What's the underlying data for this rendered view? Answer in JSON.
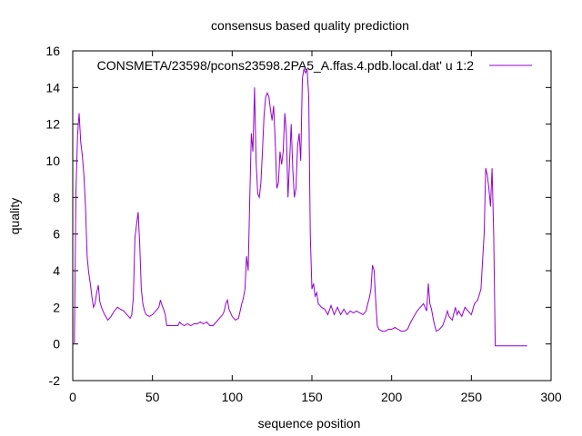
{
  "chart_data": {
    "type": "line",
    "title": "consensus based quality prediction",
    "xlabel": "sequence position",
    "ylabel": "quality",
    "xlim": [
      0,
      300
    ],
    "ylim": [
      -2,
      16
    ],
    "x_ticks": [
      0,
      50,
      100,
      150,
      200,
      250,
      300
    ],
    "y_ticks": [
      -2,
      0,
      2,
      4,
      6,
      8,
      10,
      12,
      14,
      16
    ],
    "grid": false,
    "legend_position": "top-right",
    "series": [
      {
        "name": "CONSMETA/23598/pcons23598.2PA5_A.ffas.4.pdb.local.dat' u 1:2",
        "color": "#9400d3",
        "points": [
          [
            1,
            0.0
          ],
          [
            2,
            8.3
          ],
          [
            3,
            11.4
          ],
          [
            4,
            12.6
          ],
          [
            5,
            11.0
          ],
          [
            6,
            10.3
          ],
          [
            7,
            9.2
          ],
          [
            8,
            7.5
          ],
          [
            9,
            4.8
          ],
          [
            10,
            3.9
          ],
          [
            11,
            3.3
          ],
          [
            12,
            2.6
          ],
          [
            13,
            2.0
          ],
          [
            14,
            2.2
          ],
          [
            15,
            2.8
          ],
          [
            16,
            3.2
          ],
          [
            17,
            2.3
          ],
          [
            18,
            2.0
          ],
          [
            19,
            1.8
          ],
          [
            20,
            1.6
          ],
          [
            22,
            1.3
          ],
          [
            24,
            1.5
          ],
          [
            26,
            1.8
          ],
          [
            28,
            2.0
          ],
          [
            30,
            1.9
          ],
          [
            32,
            1.8
          ],
          [
            34,
            1.6
          ],
          [
            35,
            1.5
          ],
          [
            36,
            1.4
          ],
          [
            37,
            1.6
          ],
          [
            38,
            2.5
          ],
          [
            39,
            5.8
          ],
          [
            40,
            6.5
          ],
          [
            41,
            7.2
          ],
          [
            42,
            5.5
          ],
          [
            43,
            3.0
          ],
          [
            44,
            2.2
          ],
          [
            45,
            1.8
          ],
          [
            46,
            1.6
          ],
          [
            48,
            1.5
          ],
          [
            50,
            1.6
          ],
          [
            52,
            1.8
          ],
          [
            54,
            2.0
          ],
          [
            55,
            2.4
          ],
          [
            56,
            2.1
          ],
          [
            57,
            1.9
          ],
          [
            58,
            1.6
          ],
          [
            59,
            1.0
          ],
          [
            60,
            1.0
          ],
          [
            62,
            1.0
          ],
          [
            64,
            1.0
          ],
          [
            66,
            1.0
          ],
          [
            67,
            1.2
          ],
          [
            68,
            1.1
          ],
          [
            70,
            1.0
          ],
          [
            72,
            1.1
          ],
          [
            74,
            1.0
          ],
          [
            76,
            1.1
          ],
          [
            78,
            1.1
          ],
          [
            80,
            1.2
          ],
          [
            82,
            1.1
          ],
          [
            84,
            1.2
          ],
          [
            86,
            1.0
          ],
          [
            88,
            1.0
          ],
          [
            90,
            1.2
          ],
          [
            92,
            1.4
          ],
          [
            94,
            1.6
          ],
          [
            95,
            1.8
          ],
          [
            96,
            2.2
          ],
          [
            97,
            2.4
          ],
          [
            98,
            1.9
          ],
          [
            100,
            1.5
          ],
          [
            102,
            1.3
          ],
          [
            104,
            1.4
          ],
          [
            106,
            2.2
          ],
          [
            107,
            2.5
          ],
          [
            108,
            3.0
          ],
          [
            109,
            4.8
          ],
          [
            110,
            4.0
          ],
          [
            111,
            7.8
          ],
          [
            112,
            11.5
          ],
          [
            113,
            10.5
          ],
          [
            114,
            14.0
          ],
          [
            115,
            10.0
          ],
          [
            116,
            8.2
          ],
          [
            117,
            8.0
          ],
          [
            118,
            8.8
          ],
          [
            119,
            10.5
          ],
          [
            120,
            12.5
          ],
          [
            121,
            13.5
          ],
          [
            122,
            13.7
          ],
          [
            123,
            13.5
          ],
          [
            124,
            12.8
          ],
          [
            125,
            12.2
          ],
          [
            126,
            13.0
          ],
          [
            127,
            11.0
          ],
          [
            128,
            8.5
          ],
          [
            129,
            8.8
          ],
          [
            130,
            10.5
          ],
          [
            131,
            9.8
          ],
          [
            132,
            10.5
          ],
          [
            133,
            12.6
          ],
          [
            134,
            11.5
          ],
          [
            135,
            8.0
          ],
          [
            136,
            10.0
          ],
          [
            137,
            12.0
          ],
          [
            138,
            9.5
          ],
          [
            139,
            8.0
          ],
          [
            140,
            8.5
          ],
          [
            141,
            10.8
          ],
          [
            142,
            11.5
          ],
          [
            143,
            10.0
          ],
          [
            144,
            14.5
          ],
          [
            145,
            15.0
          ],
          [
            146,
            14.8
          ],
          [
            147,
            15.0
          ],
          [
            148,
            13.5
          ],
          [
            149,
            6.0
          ],
          [
            150,
            3.0
          ],
          [
            151,
            3.3
          ],
          [
            152,
            2.6
          ],
          [
            153,
            2.8
          ],
          [
            154,
            2.2
          ],
          [
            156,
            2.0
          ],
          [
            158,
            1.9
          ],
          [
            160,
            1.6
          ],
          [
            162,
            2.1
          ],
          [
            164,
            1.6
          ],
          [
            166,
            2.0
          ],
          [
            168,
            1.6
          ],
          [
            170,
            1.9
          ],
          [
            172,
            1.6
          ],
          [
            174,
            1.8
          ],
          [
            176,
            1.7
          ],
          [
            178,
            1.8
          ],
          [
            180,
            1.7
          ],
          [
            182,
            1.6
          ],
          [
            184,
            1.8
          ],
          [
            185,
            2.2
          ],
          [
            186,
            2.5
          ],
          [
            187,
            3.0
          ],
          [
            188,
            4.3
          ],
          [
            189,
            4.0
          ],
          [
            190,
            2.4
          ],
          [
            191,
            1.0
          ],
          [
            192,
            0.8
          ],
          [
            194,
            0.7
          ],
          [
            196,
            0.7
          ],
          [
            198,
            0.8
          ],
          [
            200,
            0.8
          ],
          [
            202,
            0.9
          ],
          [
            204,
            0.8
          ],
          [
            206,
            0.7
          ],
          [
            208,
            0.7
          ],
          [
            210,
            0.8
          ],
          [
            212,
            1.2
          ],
          [
            214,
            1.5
          ],
          [
            216,
            1.8
          ],
          [
            218,
            2.0
          ],
          [
            220,
            2.2
          ],
          [
            222,
            1.8
          ],
          [
            223,
            3.3
          ],
          [
            224,
            2.2
          ],
          [
            225,
            1.9
          ],
          [
            226,
            1.4
          ],
          [
            227,
            1.0
          ],
          [
            228,
            0.7
          ],
          [
            230,
            0.8
          ],
          [
            232,
            1.0
          ],
          [
            234,
            1.5
          ],
          [
            235,
            1.8
          ],
          [
            236,
            1.5
          ],
          [
            238,
            1.3
          ],
          [
            240,
            2.0
          ],
          [
            241,
            1.6
          ],
          [
            242,
            1.8
          ],
          [
            244,
            1.5
          ],
          [
            246,
            2.0
          ],
          [
            248,
            1.8
          ],
          [
            250,
            1.6
          ],
          [
            252,
            2.2
          ],
          [
            254,
            2.4
          ],
          [
            256,
            3.0
          ],
          [
            257,
            4.5
          ],
          [
            258,
            6.0
          ],
          [
            259,
            9.6
          ],
          [
            260,
            9.2
          ],
          [
            261,
            8.5
          ],
          [
            262,
            7.5
          ],
          [
            263,
            9.6
          ],
          [
            264,
            6.0
          ],
          [
            265,
            -0.1
          ],
          [
            270,
            -0.1
          ],
          [
            275,
            -0.1
          ],
          [
            280,
            -0.1
          ],
          [
            285,
            -0.1
          ]
        ]
      }
    ]
  }
}
